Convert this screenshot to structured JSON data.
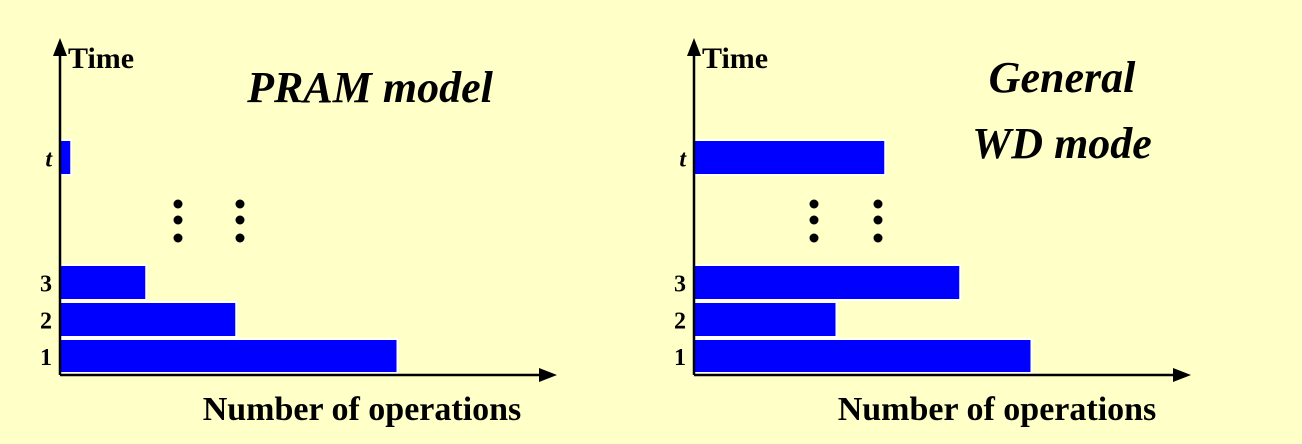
{
  "colors": {
    "background": "#ffffc8",
    "bar_fill": "#0000ff",
    "bar_stroke": "#ffffff",
    "axis": "#000000",
    "text": "#000000"
  },
  "panels": [
    {
      "id": "pram",
      "title_lines": [
        "PRAM model"
      ],
      "y_axis_label": "Time",
      "x_axis_label": "Number of operations",
      "rows": [
        {
          "label": "1",
          "value": 4.5
        },
        {
          "label": "2",
          "value": 2.35
        },
        {
          "label": "3",
          "value": 1.15
        },
        {
          "label": "t",
          "value": 0.15
        }
      ]
    },
    {
      "id": "wd",
      "title_lines": [
        "General",
        "WD mode"
      ],
      "y_axis_label": "Time",
      "x_axis_label": "Number of operations",
      "rows": [
        {
          "label": "1",
          "value": 4.5
        },
        {
          "label": "2",
          "value": 1.9
        },
        {
          "label": "3",
          "value": 3.55
        },
        {
          "label": "t",
          "value": 2.55
        }
      ]
    }
  ]
}
